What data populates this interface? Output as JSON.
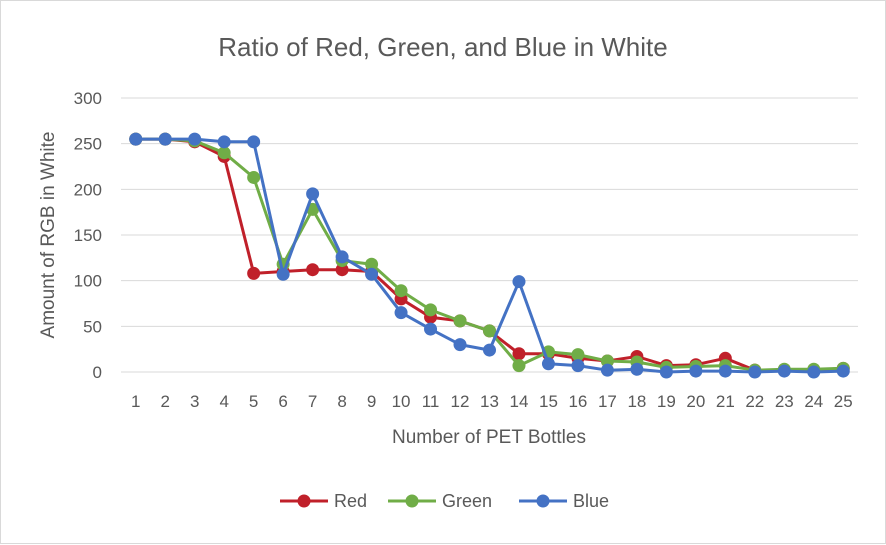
{
  "chart_data": {
    "type": "line",
    "title": "Ratio of Red, Green, and Blue in White",
    "xlabel": "Number of PET Bottles",
    "ylabel": "Amount of RGB in White",
    "categories": [
      "1",
      "2",
      "3",
      "4",
      "5",
      "6",
      "7",
      "8",
      "9",
      "10",
      "11",
      "12",
      "13",
      "14",
      "15",
      "16",
      "17",
      "18",
      "19",
      "20",
      "21",
      "22",
      "23",
      "24",
      "25"
    ],
    "ylim": [
      0,
      300
    ],
    "yticks": [
      0,
      50,
      100,
      150,
      200,
      250,
      300
    ],
    "grid": true,
    "legend_position": "bottom",
    "series": [
      {
        "name": "Red",
        "color": "#c0202a",
        "values": [
          255,
          255,
          252,
          236,
          108,
          110,
          112,
          112,
          110,
          80,
          60,
          56,
          45,
          20,
          20,
          15,
          12,
          17,
          7,
          8,
          15,
          2,
          2,
          2,
          4
        ]
      },
      {
        "name": "Green",
        "color": "#70ad47",
        "values": [
          255,
          255,
          253,
          240,
          213,
          118,
          178,
          122,
          118,
          89,
          68,
          56,
          45,
          7,
          22,
          19,
          12,
          11,
          5,
          6,
          7,
          2,
          3,
          3,
          4
        ]
      },
      {
        "name": "Blue",
        "color": "#4472c4",
        "values": [
          255,
          255,
          255,
          252,
          252,
          107,
          195,
          126,
          107,
          65,
          47,
          30,
          24,
          99,
          9,
          7,
          2,
          3,
          0,
          1,
          1,
          0,
          1,
          0,
          1
        ]
      }
    ]
  }
}
